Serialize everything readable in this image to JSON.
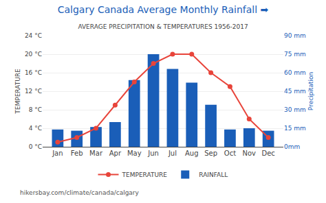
{
  "chart_data": {
    "type": "bar",
    "title": "Calgary Canada Average Monthly Rainfall ➡",
    "subtitle": "AVERAGE PRECIPITATION & TEMPERATURES 1956-2017",
    "categories": [
      "Jan",
      "Feb",
      "Mar",
      "Apr",
      "May",
      "Jun",
      "Jul",
      "Aug",
      "Sep",
      "Oct",
      "Nov",
      "Dec"
    ],
    "series": [
      {
        "name": "TEMPERATURE",
        "type": "line",
        "color": "#e8443a",
        "marker": "circle",
        "line_style": "solid",
        "values": [
          1,
          2,
          4,
          9,
          14,
          18,
          20,
          20,
          16,
          13,
          6,
          2
        ]
      },
      {
        "name": "RAINFALL",
        "type": "bar",
        "color": "#1a5eb8",
        "axis": "y2",
        "values": [
          14,
          13,
          16,
          20,
          54,
          75,
          63,
          52,
          34,
          14,
          15,
          13
        ]
      }
    ],
    "ylabel": "TEMPERATURE",
    "y2label": "Precipitation",
    "ylim": [
      0,
      24
    ],
    "yticks": [
      {
        "value": 0,
        "label": "0 °C"
      },
      {
        "value": 4,
        "label": "4 °C"
      },
      {
        "value": 8,
        "label": "8 °C"
      },
      {
        "value": 12,
        "label": "12 °C"
      },
      {
        "value": 16,
        "label": "16 °C"
      },
      {
        "value": 20,
        "label": "20 °C"
      },
      {
        "value": 24,
        "label": "24 °C"
      }
    ],
    "y2lim": [
      0,
      90
    ],
    "y2ticks": [
      {
        "value": 0,
        "label": "0mm"
      },
      {
        "value": 15,
        "label": "15 mm"
      },
      {
        "value": 30,
        "label": "30 mm"
      },
      {
        "value": 45,
        "label": "45 mm"
      },
      {
        "value": 60,
        "label": "60 mm"
      },
      {
        "value": 75,
        "label": "75 mm"
      },
      {
        "value": 90,
        "label": "90 mm"
      }
    ],
    "annotations": [
      {
        "text": "hikersbay.com/climate/canada/calgary"
      }
    ],
    "grid": true,
    "legend": "bottom"
  }
}
